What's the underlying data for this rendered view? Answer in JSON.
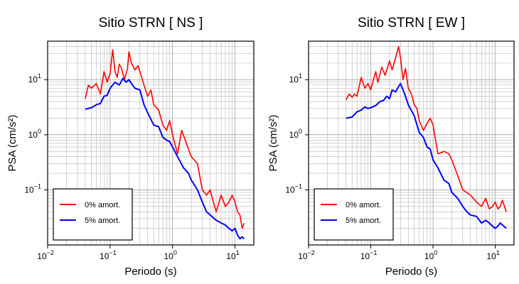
{
  "chart_data": [
    {
      "type": "line",
      "title": "Sitio STRN [ NS ]",
      "xlabel": "Periodo (s)",
      "ylabel": "PSA (cm/s²)",
      "xscale": "log",
      "yscale": "log",
      "xlim": [
        0.01,
        20
      ],
      "ylim": [
        0.01,
        50
      ],
      "x_ticks": [
        {
          "value": 0.01,
          "base": "10",
          "exp": "−2"
        },
        {
          "value": 0.1,
          "base": "10",
          "exp": "−1"
        },
        {
          "value": 1,
          "base": "10",
          "exp": "0"
        },
        {
          "value": 10,
          "base": "10",
          "exp": "1"
        }
      ],
      "y_ticks": [
        {
          "value": 0.1,
          "base": "10",
          "exp": "−1"
        },
        {
          "value": 1,
          "base": "10",
          "exp": "0"
        },
        {
          "value": 10,
          "base": "10",
          "exp": "1"
        }
      ],
      "grid": true,
      "legend_position": "bottom-left",
      "series": [
        {
          "name": "0% amort.",
          "color": "#ff0000",
          "x": [
            0.04,
            0.045,
            0.05,
            0.06,
            0.07,
            0.08,
            0.09,
            0.1,
            0.11,
            0.12,
            0.13,
            0.14,
            0.15,
            0.17,
            0.19,
            0.2,
            0.22,
            0.25,
            0.28,
            0.3,
            0.35,
            0.4,
            0.45,
            0.5,
            0.6,
            0.7,
            0.8,
            0.9,
            1.0,
            1.2,
            1.4,
            1.6,
            1.8,
            2.0,
            2.5,
            3.0,
            3.5,
            4.0,
            4.5,
            5.0,
            6.0,
            7.0,
            8.0,
            9.0,
            10.0,
            11.0,
            12.0,
            13.0,
            14.0
          ],
          "y": [
            4.5,
            8.0,
            7.0,
            8.5,
            5.5,
            14.0,
            9.0,
            13.0,
            35.0,
            14.0,
            11.0,
            19.0,
            17.0,
            10.0,
            16.0,
            32.0,
            20.0,
            15.0,
            18.0,
            14.0,
            8.0,
            5.0,
            6.5,
            3.5,
            2.8,
            1.5,
            1.2,
            1.8,
            1.0,
            0.45,
            1.2,
            0.8,
            0.55,
            0.4,
            0.3,
            0.1,
            0.08,
            0.1,
            0.06,
            0.04,
            0.08,
            0.05,
            0.06,
            0.08,
            0.06,
            0.04,
            0.035,
            0.02,
            0.025
          ]
        },
        {
          "name": "5% amort.",
          "color": "#0000ff",
          "x": [
            0.04,
            0.05,
            0.06,
            0.07,
            0.08,
            0.09,
            0.1,
            0.12,
            0.14,
            0.16,
            0.18,
            0.2,
            0.22,
            0.25,
            0.3,
            0.35,
            0.4,
            0.5,
            0.6,
            0.7,
            0.8,
            0.9,
            1.0,
            1.2,
            1.5,
            1.8,
            2.0,
            2.5,
            3.0,
            3.5,
            4.0,
            5.0,
            6.0,
            7.0,
            8.0,
            9.0,
            10.0,
            11.0,
            12.0,
            13.0,
            14.0
          ],
          "y": [
            2.9,
            3.1,
            3.5,
            3.7,
            5.0,
            5.2,
            7.0,
            9.0,
            8.0,
            10.5,
            9.0,
            10.0,
            8.5,
            7.0,
            6.5,
            3.5,
            2.5,
            1.5,
            1.4,
            0.9,
            0.8,
            0.75,
            0.6,
            0.4,
            0.25,
            0.2,
            0.15,
            0.1,
            0.06,
            0.04,
            0.035,
            0.028,
            0.025,
            0.023,
            0.02,
            0.018,
            0.02,
            0.015,
            0.013,
            0.014,
            0.013
          ]
        }
      ]
    },
    {
      "type": "line",
      "title": "Sitio STRN [ EW ]",
      "xlabel": "Periodo (s)",
      "ylabel": "PSA (cm/s²)",
      "xscale": "log",
      "yscale": "log",
      "xlim": [
        0.01,
        20
      ],
      "ylim": [
        0.01,
        50
      ],
      "x_ticks": [
        {
          "value": 0.01,
          "base": "10",
          "exp": "−2"
        },
        {
          "value": 0.1,
          "base": "10",
          "exp": "−1"
        },
        {
          "value": 1,
          "base": "10",
          "exp": "0"
        },
        {
          "value": 10,
          "base": "10",
          "exp": "1"
        }
      ],
      "y_ticks": [
        {
          "value": 0.1,
          "base": "10",
          "exp": "−1"
        },
        {
          "value": 1,
          "base": "10",
          "exp": "0"
        },
        {
          "value": 10,
          "base": "10",
          "exp": "1"
        }
      ],
      "grid": true,
      "legend_position": "bottom-left",
      "series": [
        {
          "name": "0% amort.",
          "color": "#ff0000",
          "x": [
            0.04,
            0.045,
            0.05,
            0.055,
            0.06,
            0.07,
            0.08,
            0.09,
            0.1,
            0.11,
            0.12,
            0.13,
            0.15,
            0.17,
            0.2,
            0.22,
            0.25,
            0.28,
            0.3,
            0.33,
            0.36,
            0.4,
            0.45,
            0.5,
            0.55,
            0.6,
            0.7,
            0.8,
            0.9,
            1.0,
            1.2,
            1.5,
            1.8,
            2.0,
            2.5,
            3.0,
            4.0,
            5.0,
            6.0,
            7.0,
            8.0,
            9.0,
            10.0,
            11.0,
            12.0,
            13.0,
            15.0
          ],
          "y": [
            4.3,
            5.5,
            4.8,
            5.5,
            5.0,
            11.0,
            7.0,
            8.5,
            6.5,
            10.0,
            14.0,
            9.0,
            17.0,
            12.0,
            22.0,
            15.0,
            25.0,
            40.0,
            25.0,
            10.0,
            16.0,
            7.0,
            5.5,
            3.5,
            3.0,
            1.8,
            1.2,
            1.6,
            2.0,
            1.5,
            0.45,
            0.5,
            0.45,
            0.35,
            0.18,
            0.1,
            0.08,
            0.06,
            0.05,
            0.07,
            0.045,
            0.05,
            0.06,
            0.045,
            0.05,
            0.065,
            0.04
          ]
        },
        {
          "name": "5% amort.",
          "color": "#0000ff",
          "x": [
            0.04,
            0.05,
            0.06,
            0.07,
            0.08,
            0.09,
            0.1,
            0.12,
            0.14,
            0.16,
            0.18,
            0.2,
            0.22,
            0.25,
            0.28,
            0.3,
            0.35,
            0.4,
            0.5,
            0.6,
            0.7,
            0.8,
            0.9,
            1.0,
            1.2,
            1.5,
            1.8,
            2.0,
            2.5,
            3.0,
            3.5,
            4.0,
            5.0,
            6.0,
            7.0,
            8.0,
            9.0,
            10.0,
            11.0,
            12.0,
            13.0,
            15.0
          ],
          "y": [
            2.0,
            2.1,
            2.6,
            2.8,
            3.2,
            3.0,
            3.1,
            3.4,
            4.0,
            4.2,
            5.0,
            4.5,
            6.5,
            6.0,
            7.5,
            8.5,
            5.5,
            3.5,
            2.2,
            1.1,
            0.9,
            0.6,
            0.55,
            0.35,
            0.25,
            0.15,
            0.13,
            0.09,
            0.07,
            0.05,
            0.04,
            0.035,
            0.033,
            0.025,
            0.028,
            0.025,
            0.022,
            0.02,
            0.022,
            0.025,
            0.023,
            0.02
          ]
        }
      ]
    }
  ]
}
